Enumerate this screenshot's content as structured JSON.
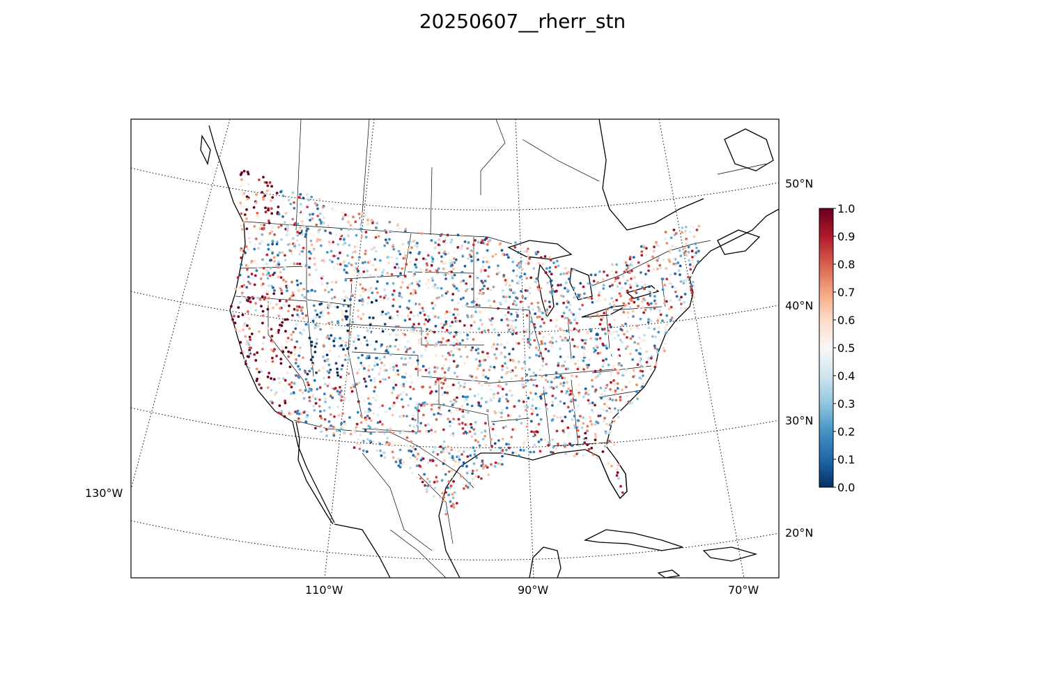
{
  "title": "20250607__rherr_stn",
  "map": {
    "projection": "Lambert conformal conic",
    "region": "Contiguous United States with southern Canada, northern Mexico and the Caribbean",
    "lat_labels": [
      "50°N",
      "40°N",
      "30°N",
      "20°N"
    ],
    "lon_labels": [
      "130°W",
      "110°W",
      "90°W",
      "70°W"
    ],
    "graticule_style": "dotted",
    "boundaries": [
      "coastlines",
      "countries",
      "states/provinces"
    ]
  },
  "colorbar": {
    "colormap": "RdBu_r",
    "min": 0.0,
    "max": 1.0,
    "ticks": [
      "0.0",
      "0.1",
      "0.2",
      "0.3",
      "0.4",
      "0.5",
      "0.6",
      "0.7",
      "0.8",
      "0.9",
      "1.0"
    ],
    "colors": {
      "low": "#053061",
      "mid": "#f7f7f7",
      "high": "#67001f"
    }
  },
  "stations": {
    "description_count": "several thousand station markers colored by value",
    "regions_high": [
      "Pacific Northwest / British Columbia",
      "California coast",
      "Florida",
      "Gulf coast",
      "Texas"
    ],
    "regions_low": [
      "Great Basin",
      "Colorado Rockies",
      "Ohio Valley"
    ]
  }
}
